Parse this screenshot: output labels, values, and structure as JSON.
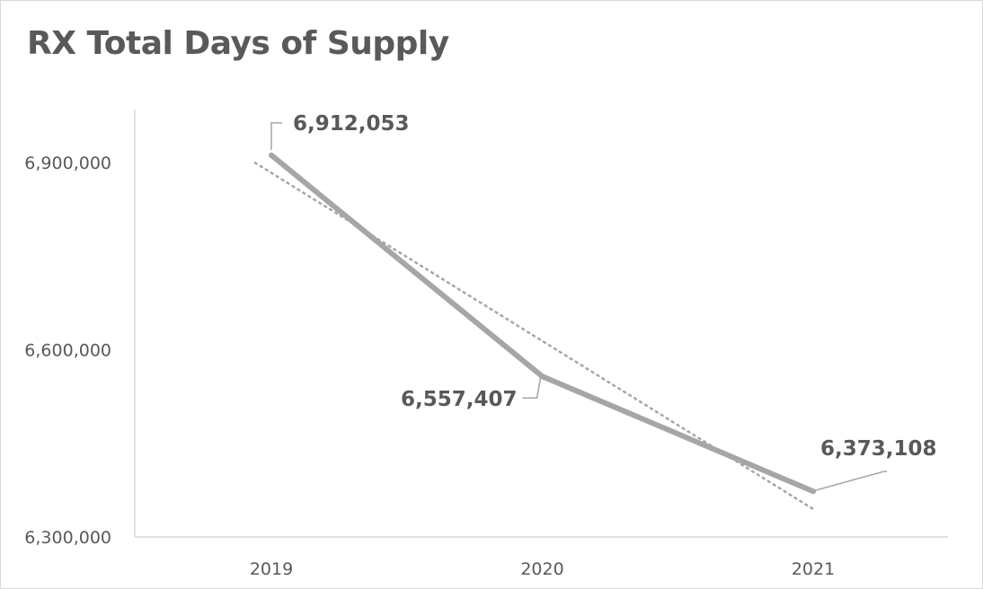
{
  "chart_data": {
    "type": "line",
    "title": "RX Total Days of Supply",
    "xlabel": "",
    "ylabel": "",
    "categories": [
      "2019",
      "2020",
      "2021"
    ],
    "series": [
      {
        "values": [
          6912053,
          6557407,
          6373108
        ],
        "color": "#a6a6a6"
      }
    ],
    "data_labels": [
      "6,912,053",
      "6,557,407",
      "6,373,108"
    ],
    "y_ticks": [
      {
        "value": 6300000,
        "label": "6,300,000"
      },
      {
        "value": 6600000,
        "label": "6,600,000"
      },
      {
        "value": 6900000,
        "label": "6,900,000"
      }
    ],
    "ylim": [
      6300000,
      7000000
    ],
    "trendline": {
      "type": "linear",
      "style": "dotted",
      "color": "#a6a6a6"
    },
    "grid": false,
    "legend": "none"
  }
}
